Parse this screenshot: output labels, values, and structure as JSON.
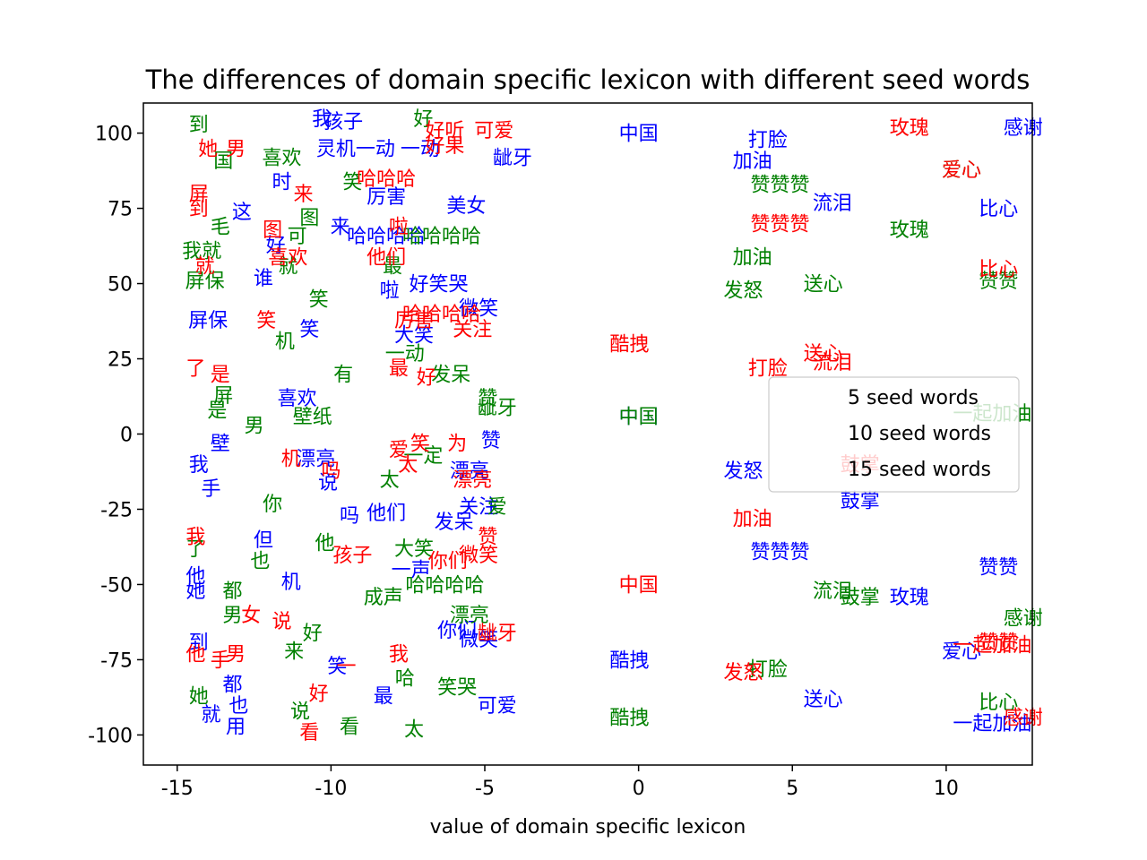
{
  "chart_data": {
    "type": "scatter",
    "title": "The differences of domain specific lexicon with different seed words",
    "xlabel": "value of domain specific lexicon",
    "ylabel": "",
    "xlim": [
      -16.1,
      12.8
    ],
    "ylim": [
      -110,
      110
    ],
    "xticks": [
      -15,
      -10,
      -5,
      0,
      5,
      10
    ],
    "yticks": [
      100,
      75,
      50,
      25,
      0,
      -25,
      -50,
      -75,
      -100
    ],
    "grid": false,
    "legend": {
      "placement": "right",
      "entries": [
        "5 seed words",
        "10 seed words",
        "15 seed words"
      ]
    },
    "series": [
      {
        "name": "5 seed words",
        "color": "#0000ff",
        "points": [
          {
            "label": "中国",
            "x": 0,
            "y": 100
          },
          {
            "label": "感谢",
            "x": 12.5,
            "y": 102
          },
          {
            "label": "打脸",
            "x": 4.2,
            "y": 98
          },
          {
            "label": "加油",
            "x": 3.7,
            "y": 91
          },
          {
            "label": "比心",
            "x": 11.7,
            "y": 75
          },
          {
            "label": "流泪",
            "x": 6.3,
            "y": 77
          },
          {
            "label": "中国",
            "x": 0,
            "y": 6
          },
          {
            "label": "发怒",
            "x": 3.4,
            "y": -12
          },
          {
            "label": "鼓掌",
            "x": 7.2,
            "y": -22
          },
          {
            "label": "赞赞赞",
            "x": 4.6,
            "y": -39
          },
          {
            "label": "赞赞",
            "x": 11.7,
            "y": -44
          },
          {
            "label": "玫瑰",
            "x": 8.8,
            "y": -54
          },
          {
            "label": "爱心",
            "x": 10.5,
            "y": -72
          },
          {
            "label": "酷拽",
            "x": -0.3,
            "y": -75
          },
          {
            "label": "送心",
            "x": 6,
            "y": -88
          },
          {
            "label": "一起加油",
            "x": 11.5,
            "y": -96
          },
          {
            "label": "哈哈哈哈",
            "x": -8.2,
            "y": 66
          },
          {
            "label": "啦",
            "x": -8.1,
            "y": 48
          },
          {
            "label": "好笑哭",
            "x": -6.5,
            "y": 50
          },
          {
            "label": "微笑",
            "x": -5.2,
            "y": 42
          },
          {
            "label": "大笑",
            "x": -7.3,
            "y": 33
          },
          {
            "label": "龇牙",
            "x": -4.1,
            "y": 92
          },
          {
            "label": "美女",
            "x": -5.6,
            "y": 76
          },
          {
            "label": "一动",
            "x": -7.1,
            "y": 95
          },
          {
            "label": "厉害",
            "x": -8.2,
            "y": 79
          },
          {
            "label": "漂亮",
            "x": -5.5,
            "y": -12
          },
          {
            "label": "赞",
            "x": -4.8,
            "y": -2
          },
          {
            "label": "关注",
            "x": -5.2,
            "y": -24
          },
          {
            "label": "发呆",
            "x": -6,
            "y": -29
          },
          {
            "label": "他们",
            "x": -8.2,
            "y": -26
          },
          {
            "label": "可爱",
            "x": -4.6,
            "y": -90
          },
          {
            "label": "微笑",
            "x": -5.2,
            "y": -68
          },
          {
            "label": "孩子",
            "x": -9.6,
            "y": 104
          },
          {
            "label": "我",
            "x": -14.3,
            "y": -10
          },
          {
            "label": "屏保",
            "x": -14,
            "y": 38
          },
          {
            "label": "他",
            "x": -14.4,
            "y": -47
          },
          {
            "label": "她",
            "x": -14.4,
            "y": -52
          },
          {
            "label": "都",
            "x": -13.2,
            "y": -83
          },
          {
            "label": "就",
            "x": -13.9,
            "y": -93
          },
          {
            "label": "也",
            "x": -13,
            "y": -90
          },
          {
            "label": "用",
            "x": -13.1,
            "y": -97
          },
          {
            "label": "壁",
            "x": -13.6,
            "y": -3
          },
          {
            "label": "手",
            "x": -13.9,
            "y": -18
          },
          {
            "label": "这",
            "x": -12.9,
            "y": 74
          },
          {
            "label": "一声",
            "x": -7.4,
            "y": -45
          },
          {
            "label": "最",
            "x": -8.3,
            "y": -87
          },
          {
            "label": "你们",
            "x": -5.9,
            "y": -65
          },
          {
            "label": "到",
            "x": -14.3,
            "y": -69
          },
          {
            "label": "好",
            "x": -11.8,
            "y": 63
          },
          {
            "label": "笑",
            "x": -10.7,
            "y": 35
          },
          {
            "label": "机",
            "x": -11.3,
            "y": -49
          },
          {
            "label": "说",
            "x": -10.1,
            "y": -16
          },
          {
            "label": "吗",
            "x": -9.4,
            "y": -27
          },
          {
            "label": "来",
            "x": -9.7,
            "y": 69
          },
          {
            "label": "灵机一动",
            "x": -9.2,
            "y": 95
          },
          {
            "label": "我",
            "x": -10.3,
            "y": 105
          },
          {
            "label": "时",
            "x": -11.6,
            "y": 84
          },
          {
            "label": "谁",
            "x": -12.2,
            "y": 52
          },
          {
            "label": "喜欢",
            "x": -11.1,
            "y": 12
          },
          {
            "label": "漂亮",
            "x": -10.5,
            "y": -8
          },
          {
            "label": "但",
            "x": -12.2,
            "y": -35
          },
          {
            "label": "笑",
            "x": -9.8,
            "y": -77
          }
        ]
      },
      {
        "name": "10 seed words",
        "color": "#008000",
        "points": [
          {
            "label": "到",
            "x": -14.3,
            "y": 103
          },
          {
            "label": "好",
            "x": -7,
            "y": 105
          },
          {
            "label": "赞赞赞",
            "x": 4.6,
            "y": 83
          },
          {
            "label": "爱心",
            "x": 10.5,
            "y": 88
          },
          {
            "label": "玫瑰",
            "x": 8.8,
            "y": 68
          },
          {
            "label": "加油",
            "x": 3.7,
            "y": 59
          },
          {
            "label": "送心",
            "x": 6,
            "y": 50
          },
          {
            "label": "发怒",
            "x": 3.4,
            "y": 48
          },
          {
            "label": "赞赞",
            "x": 11.7,
            "y": 51
          },
          {
            "label": "一起加油",
            "x": 11.5,
            "y": 7
          },
          {
            "label": "流泪",
            "x": 6.3,
            "y": -52
          },
          {
            "label": "鼓掌",
            "x": 7.2,
            "y": -54
          },
          {
            "label": "感谢",
            "x": 12.5,
            "y": -61
          },
          {
            "label": "打脸",
            "x": 4.2,
            "y": -78
          },
          {
            "label": "比心",
            "x": 11.7,
            "y": -89
          },
          {
            "label": "酷拽",
            "x": -0.3,
            "y": -94
          },
          {
            "label": "中国",
            "x": 0,
            "y": 6
          },
          {
            "label": "哈哈哈哈",
            "x": -6.4,
            "y": 66
          },
          {
            "label": "龇牙",
            "x": -4.6,
            "y": 9
          },
          {
            "label": "赞",
            "x": -4.9,
            "y": 12
          },
          {
            "label": "发呆",
            "x": -6.1,
            "y": 20
          },
          {
            "label": "爱",
            "x": -4.6,
            "y": -24
          },
          {
            "label": "哈哈哈哈",
            "x": -6.3,
            "y": -50
          },
          {
            "label": "笑哭",
            "x": -5.9,
            "y": -84
          },
          {
            "label": "太",
            "x": -7.3,
            "y": -98
          },
          {
            "label": "漂亮",
            "x": -5.5,
            "y": -60
          },
          {
            "label": "大笑",
            "x": -7.3,
            "y": -38
          },
          {
            "label": "一动",
            "x": -7.6,
            "y": 27
          },
          {
            "label": "我就",
            "x": -14.2,
            "y": 61
          },
          {
            "label": "屏保",
            "x": -14.1,
            "y": 51
          },
          {
            "label": "是",
            "x": -13.7,
            "y": 8
          },
          {
            "label": "毛",
            "x": -13.6,
            "y": 69
          },
          {
            "label": "都",
            "x": -13.2,
            "y": -52
          },
          {
            "label": "男",
            "x": -13.2,
            "y": -60
          },
          {
            "label": "她",
            "x": -14.3,
            "y": -87
          },
          {
            "label": "了",
            "x": -14.4,
            "y": -38
          },
          {
            "label": "国",
            "x": -13.5,
            "y": 91
          },
          {
            "label": "屏",
            "x": -13.5,
            "y": 13
          },
          {
            "label": "喜欢",
            "x": -11.6,
            "y": 92
          },
          {
            "label": "可",
            "x": -11.1,
            "y": 66
          },
          {
            "label": "最",
            "x": -8,
            "y": 56
          },
          {
            "label": "有",
            "x": -9.6,
            "y": 20
          },
          {
            "label": "一定",
            "x": -7,
            "y": -7
          },
          {
            "label": "太",
            "x": -8.1,
            "y": -15
          },
          {
            "label": "说",
            "x": -11,
            "y": -92
          },
          {
            "label": "哈",
            "x": -7.6,
            "y": -81
          },
          {
            "label": "成声",
            "x": -8.3,
            "y": -54
          },
          {
            "label": "看",
            "x": -9.4,
            "y": -97
          },
          {
            "label": "笑",
            "x": -10.4,
            "y": 45
          },
          {
            "label": "机",
            "x": -11.5,
            "y": 31
          },
          {
            "label": "男",
            "x": -12.5,
            "y": 3
          },
          {
            "label": "你",
            "x": -11.9,
            "y": -23
          },
          {
            "label": "也",
            "x": -12.3,
            "y": -42
          },
          {
            "label": "图",
            "x": -10.7,
            "y": 72
          },
          {
            "label": "笑",
            "x": -9.3,
            "y": 84
          },
          {
            "label": "好",
            "x": -10.6,
            "y": -66
          },
          {
            "label": "来",
            "x": -11.2,
            "y": -72
          },
          {
            "label": "他",
            "x": -10.2,
            "y": -36
          },
          {
            "label": "就",
            "x": -11.4,
            "y": 56
          },
          {
            "label": "壁纸",
            "x": -10.6,
            "y": 6
          }
        ]
      },
      {
        "name": "15 seed words",
        "color": "#ff0000",
        "points": [
          {
            "label": "好听",
            "x": -6.3,
            "y": 101
          },
          {
            "label": "可爱",
            "x": -4.7,
            "y": 101
          },
          {
            "label": "好果",
            "x": -6.3,
            "y": 96
          },
          {
            "label": "玫瑰",
            "x": 8.8,
            "y": 102
          },
          {
            "label": "爱心",
            "x": 10.5,
            "y": 88
          },
          {
            "label": "赞赞赞",
            "x": 4.6,
            "y": 70
          },
          {
            "label": "比心",
            "x": 11.7,
            "y": 55
          },
          {
            "label": "酷拽",
            "x": -0.3,
            "y": 30
          },
          {
            "label": "送心",
            "x": 6,
            "y": 27
          },
          {
            "label": "流泪",
            "x": 6.3,
            "y": 24
          },
          {
            "label": "打脸",
            "x": 4.2,
            "y": 22
          },
          {
            "label": "鼓掌",
            "x": 7.2,
            "y": -10
          },
          {
            "label": "加油",
            "x": 3.7,
            "y": -28
          },
          {
            "label": "中国",
            "x": 0,
            "y": -50
          },
          {
            "label": "发怒",
            "x": 3.4,
            "y": -79
          },
          {
            "label": "赞赞",
            "x": 11.7,
            "y": -69
          },
          {
            "label": "一起加油",
            "x": 11.5,
            "y": -70
          },
          {
            "label": "感谢",
            "x": 12.5,
            "y": -94
          },
          {
            "label": "龇牙",
            "x": -4.6,
            "y": -66
          },
          {
            "label": "哈哈哈哈",
            "x": -6.4,
            "y": 40
          },
          {
            "label": "关注",
            "x": -5.4,
            "y": 35
          },
          {
            "label": "厉害",
            "x": -7.3,
            "y": 38
          },
          {
            "label": "你们",
            "x": -6.2,
            "y": -42
          },
          {
            "label": "好",
            "x": -6.9,
            "y": 19
          },
          {
            "label": "漂亮",
            "x": -5.4,
            "y": -15
          },
          {
            "label": "为",
            "x": -5.9,
            "y": -3
          },
          {
            "label": "赞",
            "x": -4.9,
            "y": -34
          },
          {
            "label": "微笑",
            "x": -5.2,
            "y": -40
          },
          {
            "label": "她",
            "x": -14,
            "y": 95
          },
          {
            "label": "男",
            "x": -13.1,
            "y": 95
          },
          {
            "label": "到",
            "x": -14.3,
            "y": 75
          },
          {
            "label": "屏",
            "x": -14.3,
            "y": 80
          },
          {
            "label": "就",
            "x": -14.1,
            "y": 56
          },
          {
            "label": "了",
            "x": -14.4,
            "y": 22
          },
          {
            "label": "是",
            "x": -13.6,
            "y": 20
          },
          {
            "label": "我",
            "x": -14.4,
            "y": -34
          },
          {
            "label": "他",
            "x": -14.4,
            "y": -73
          },
          {
            "label": "手",
            "x": -13.6,
            "y": -75
          },
          {
            "label": "男",
            "x": -13.1,
            "y": -73
          },
          {
            "label": "女",
            "x": -12.6,
            "y": -60
          },
          {
            "label": "啦",
            "x": -7.8,
            "y": 69
          },
          {
            "label": "他们",
            "x": -8.2,
            "y": 59
          },
          {
            "label": "最",
            "x": -7.8,
            "y": 22
          },
          {
            "label": "哈哈哈",
            "x": -8.2,
            "y": 85
          },
          {
            "label": "孩子",
            "x": -9.3,
            "y": -40
          },
          {
            "label": "我",
            "x": -7.8,
            "y": -73
          },
          {
            "label": "太",
            "x": -7.5,
            "y": -10
          },
          {
            "label": "爱",
            "x": -7.8,
            "y": -5
          },
          {
            "label": "笑",
            "x": -7.1,
            "y": -3
          },
          {
            "label": "一",
            "x": -9.5,
            "y": -77
          },
          {
            "label": "看",
            "x": -10.7,
            "y": -99
          },
          {
            "label": "说",
            "x": -11.6,
            "y": -62
          },
          {
            "label": "好",
            "x": -10.4,
            "y": -86
          },
          {
            "label": "喜欢",
            "x": -11.4,
            "y": 59
          },
          {
            "label": "图",
            "x": -11.9,
            "y": 68
          },
          {
            "label": "来",
            "x": -10.9,
            "y": 80
          },
          {
            "label": "笑",
            "x": -12.1,
            "y": 38
          },
          {
            "label": "机",
            "x": -11.3,
            "y": -8
          },
          {
            "label": "吗",
            "x": -10,
            "y": -12
          }
        ]
      }
    ]
  }
}
